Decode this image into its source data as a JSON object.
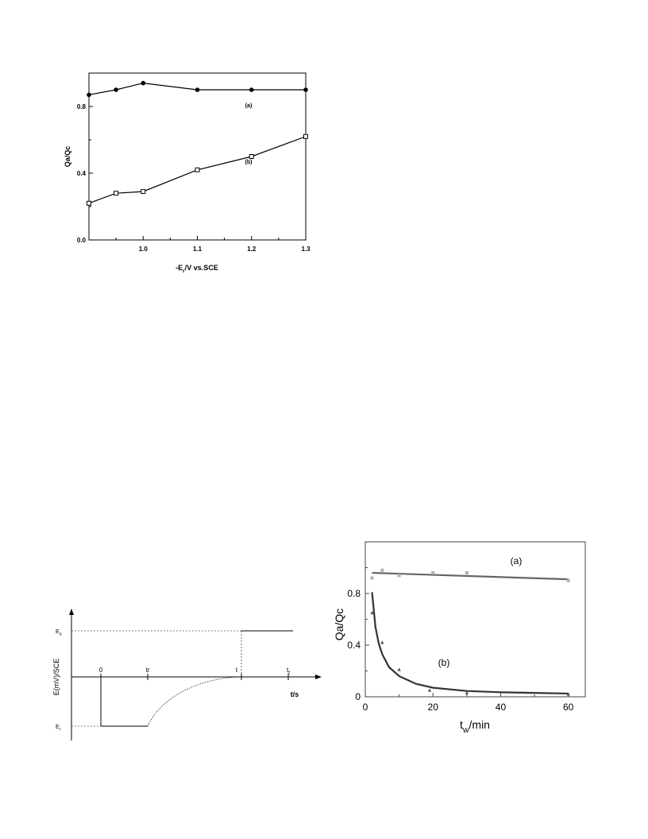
{
  "chart_data": [
    {
      "type": "line",
      "title": "",
      "xlabel": "-E",
      "xlabel_sub": "r",
      "xlabel_rest": "/V vs.SCE",
      "ylabel": "Qa/Qc",
      "xlim": [
        0.9,
        1.3
      ],
      "ylim": [
        0.0,
        1.0
      ],
      "xticks": [
        1.0,
        1.1,
        1.2,
        1.3
      ],
      "xtick_labels": [
        "1.0",
        "1.1",
        "1.2",
        "1.3"
      ],
      "yticks": [
        0.0,
        0.4,
        0.8
      ],
      "ytick_labels": [
        "0.0",
        "0.4",
        "0.8"
      ],
      "series": [
        {
          "name": "(a)",
          "marker": "filled-circle",
          "x": [
            0.9,
            0.95,
            1.0,
            1.1,
            1.2,
            1.3
          ],
          "y": [
            0.87,
            0.9,
            0.94,
            0.9,
            0.9,
            0.9
          ]
        },
        {
          "name": "(b)",
          "marker": "open-square",
          "x": [
            0.9,
            0.95,
            1.0,
            1.1,
            1.2,
            1.3
          ],
          "y": [
            0.22,
            0.28,
            0.29,
            0.42,
            0.5,
            0.62
          ]
        }
      ],
      "annotations": [
        "(a)",
        "(b)"
      ]
    },
    {
      "type": "line",
      "subtype": "potential-time waveform",
      "ylabel": "E(mV)/SCE",
      "xlabel": "t/s",
      "y_levels": {
        "Ea": 1,
        "zero": 0,
        "Er": -1
      },
      "level_labels": {
        "Ea": "E",
        "Ea_sub": "a",
        "Er": "E",
        "Er_sub": "r"
      },
      "time_marks": [
        {
          "label": "0",
          "t": 0
        },
        {
          "label": "tr",
          "t": 1
        },
        {
          "label": "t",
          "t": 3
        },
        {
          "label": "t",
          "sub": "f",
          "t": 4
        }
      ],
      "segments": [
        {
          "from": [
            0,
            -1
          ],
          "to": [
            1,
            -1
          ],
          "style": "solid"
        },
        {
          "from": [
            1,
            -1
          ],
          "to": [
            3,
            0
          ],
          "style": "dotted-curve"
        },
        {
          "from": [
            3,
            1
          ],
          "to": [
            3.9,
            1
          ],
          "style": "solid"
        }
      ]
    },
    {
      "type": "scatter",
      "xlabel": "t",
      "xlabel_sub": "w",
      "xlabel_rest": "/min",
      "ylabel": "Qa/Qc",
      "xlim": [
        0,
        65
      ],
      "ylim": [
        0,
        1.2
      ],
      "xticks": [
        0,
        20,
        40,
        60
      ],
      "xtick_labels": [
        "0",
        "20",
        "40",
        "60"
      ],
      "yticks": [
        0,
        0.4,
        0.8
      ],
      "ytick_labels": [
        "0",
        "0.4",
        "0.8"
      ],
      "series": [
        {
          "name": "(a)",
          "marker": "square",
          "color": "#b0b0b0",
          "x": [
            2,
            5,
            10,
            20,
            30,
            60
          ],
          "y": [
            0.92,
            0.98,
            0.94,
            0.96,
            0.96,
            0.9
          ],
          "fit": {
            "x": [
              2,
              60
            ],
            "y": [
              0.96,
              0.91
            ]
          }
        },
        {
          "name": "(b)",
          "marker": "triangle",
          "color": "#555555",
          "x": [
            2,
            5,
            10,
            19,
            30,
            60
          ],
          "y": [
            0.65,
            0.42,
            0.21,
            0.05,
            0.03,
            0.02
          ],
          "fit": {
            "x": [
              2,
              3,
              4,
              5,
              7,
              10,
              15,
              20,
              30,
              40,
              50,
              60
            ],
            "y": [
              0.81,
              0.54,
              0.41,
              0.33,
              0.23,
              0.16,
              0.1,
              0.07,
              0.045,
              0.035,
              0.03,
              0.025
            ]
          }
        }
      ],
      "annotations": [
        "(a)",
        "(b)"
      ]
    }
  ]
}
